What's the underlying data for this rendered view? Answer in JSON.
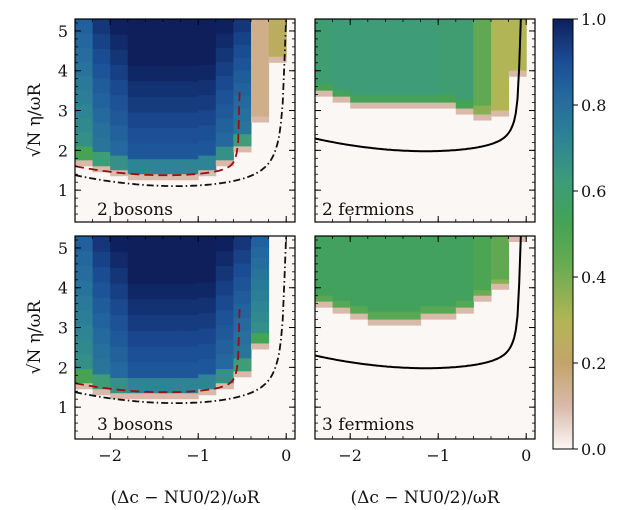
{
  "chart_data": {
    "type": "heatmap",
    "colormap": {
      "name": "gist_earth_r",
      "stops": [
        {
          "v": 0.0,
          "color": "#fbf7f5"
        },
        {
          "v": 0.1,
          "color": "#d9b9aa"
        },
        {
          "v": 0.2,
          "color": "#c4a46a"
        },
        {
          "v": 0.3,
          "color": "#b2b556"
        },
        {
          "v": 0.42,
          "color": "#6bac52"
        },
        {
          "v": 0.52,
          "color": "#45a353"
        },
        {
          "v": 0.62,
          "color": "#3e9c78"
        },
        {
          "v": 0.72,
          "color": "#2e8395"
        },
        {
          "v": 0.82,
          "color": "#25699f"
        },
        {
          "v": 0.9,
          "color": "#1b4e95"
        },
        {
          "v": 1.0,
          "color": "#0e1f5c"
        }
      ]
    },
    "colorbar": {
      "ticks": [
        "0.0",
        "0.2",
        "0.4",
        "0.6",
        "0.8",
        "1.0"
      ],
      "range": [
        0,
        1
      ]
    },
    "x_axis": {
      "label": "(Δc − NU0/2)/ωR",
      "range": [
        -2.4,
        0.1
      ],
      "ticks": [
        "−2",
        "−1",
        "0"
      ]
    },
    "y_axis": {
      "label": "√N η/ωR",
      "range": [
        0.2,
        5.3
      ],
      "ticks": [
        "1",
        "2",
        "3",
        "4",
        "5"
      ]
    },
    "panels": [
      {
        "label": "2 bosons",
        "cells": [
          {
            "x0": -2.4,
            "x1": -2.2,
            "y_top": 1.75,
            "value": 0.6
          },
          {
            "x0": -2.2,
            "x1": -2.0,
            "y_top": 1.6,
            "value": 0.7
          },
          {
            "x0": -2.0,
            "x1": -1.8,
            "y_top": 1.5,
            "value": 0.75
          },
          {
            "x0": -1.8,
            "x1": -1.6,
            "y_top": 1.4,
            "value": 0.8
          },
          {
            "x0": -1.6,
            "x1": -1.4,
            "y_top": 1.4,
            "value": 0.8
          },
          {
            "x0": -1.4,
            "x1": -1.2,
            "y_top": 1.4,
            "value": 0.8
          },
          {
            "x0": -1.2,
            "x1": -1.0,
            "y_top": 1.4,
            "value": 0.8
          },
          {
            "x0": -1.0,
            "x1": -0.8,
            "y_top": 1.5,
            "value": 0.8
          },
          {
            "x0": -0.8,
            "x1": -0.6,
            "y_top": 1.75,
            "value": 0.75
          },
          {
            "x0": -0.6,
            "x1": -0.4,
            "y_top": 2.1,
            "value": 0.7
          },
          {
            "x0": -0.4,
            "x1": -0.2,
            "y_top": 2.85,
            "value": 0.15
          },
          {
            "x0": -0.2,
            "x1": 0.0,
            "y_top": 4.35,
            "value": 0.25
          }
        ],
        "guides": [
          "dashed",
          "dashdot"
        ]
      },
      {
        "label": "2 fermions",
        "cells": [
          {
            "x0": -2.4,
            "x1": -2.2,
            "y_top": 3.5,
            "value": 0.6
          },
          {
            "x0": -2.2,
            "x1": -2.0,
            "y_top": 3.35,
            "value": 0.62
          },
          {
            "x0": -2.0,
            "x1": -1.8,
            "y_top": 3.2,
            "value": 0.62
          },
          {
            "x0": -1.8,
            "x1": -1.6,
            "y_top": 3.2,
            "value": 0.62
          },
          {
            "x0": -1.6,
            "x1": -1.4,
            "y_top": 3.2,
            "value": 0.62
          },
          {
            "x0": -1.4,
            "x1": -1.2,
            "y_top": 3.2,
            "value": 0.62
          },
          {
            "x0": -1.2,
            "x1": -1.0,
            "y_top": 3.2,
            "value": 0.62
          },
          {
            "x0": -1.0,
            "x1": -0.8,
            "y_top": 3.2,
            "value": 0.6
          },
          {
            "x0": -0.8,
            "x1": -0.6,
            "y_top": 3.05,
            "value": 0.6
          },
          {
            "x0": -0.6,
            "x1": -0.4,
            "y_top": 2.9,
            "value": 0.45
          },
          {
            "x0": -0.4,
            "x1": -0.2,
            "y_top": 3.0,
            "value": 0.3
          },
          {
            "x0": -0.2,
            "x1": 0.0,
            "y_top": 4.0,
            "value": 0.3
          }
        ],
        "guides": [
          "solid"
        ]
      },
      {
        "label": "3 bosons",
        "cells": [
          {
            "x0": -2.4,
            "x1": -2.2,
            "y_top": 1.6,
            "value": 0.6
          },
          {
            "x0": -2.2,
            "x1": -2.0,
            "y_top": 1.45,
            "value": 0.7
          },
          {
            "x0": -2.0,
            "x1": -1.8,
            "y_top": 1.35,
            "value": 0.75
          },
          {
            "x0": -1.8,
            "x1": -1.6,
            "y_top": 1.35,
            "value": 0.8
          },
          {
            "x0": -1.6,
            "x1": -1.4,
            "y_top": 1.35,
            "value": 0.8
          },
          {
            "x0": -1.4,
            "x1": -1.2,
            "y_top": 1.35,
            "value": 0.8
          },
          {
            "x0": -1.2,
            "x1": -1.0,
            "y_top": 1.35,
            "value": 0.8
          },
          {
            "x0": -1.0,
            "x1": -0.8,
            "y_top": 1.45,
            "value": 0.8
          },
          {
            "x0": -0.8,
            "x1": -0.6,
            "y_top": 1.6,
            "value": 0.75
          },
          {
            "x0": -0.6,
            "x1": -0.4,
            "y_top": 1.9,
            "value": 0.7
          },
          {
            "x0": -0.4,
            "x1": -0.2,
            "y_top": 2.6,
            "value": 0.6
          },
          {
            "x0": -0.2,
            "x1": 0.0,
            "y_top": 5.3,
            "value": 0.0
          }
        ],
        "guides": [
          "dashed",
          "dashdot"
        ]
      },
      {
        "label": "3 fermions",
        "cells": [
          {
            "x0": -2.4,
            "x1": -2.2,
            "y_top": 3.65,
            "value": 0.55
          },
          {
            "x0": -2.2,
            "x1": -2.0,
            "y_top": 3.5,
            "value": 0.55
          },
          {
            "x0": -2.0,
            "x1": -1.8,
            "y_top": 3.35,
            "value": 0.55
          },
          {
            "x0": -1.8,
            "x1": -1.6,
            "y_top": 3.2,
            "value": 0.55
          },
          {
            "x0": -1.6,
            "x1": -1.4,
            "y_top": 3.2,
            "value": 0.55
          },
          {
            "x0": -1.4,
            "x1": -1.2,
            "y_top": 3.2,
            "value": 0.55
          },
          {
            "x0": -1.2,
            "x1": -1.0,
            "y_top": 3.35,
            "value": 0.55
          },
          {
            "x0": -1.0,
            "x1": -0.8,
            "y_top": 3.35,
            "value": 0.55
          },
          {
            "x0": -0.8,
            "x1": -0.6,
            "y_top": 3.5,
            "value": 0.55
          },
          {
            "x0": -0.6,
            "x1": -0.4,
            "y_top": 3.8,
            "value": 0.5
          },
          {
            "x0": -0.4,
            "x1": -0.2,
            "y_top": 4.1,
            "value": 0.45
          },
          {
            "x0": -0.2,
            "x1": 0.0,
            "y_top": 5.3,
            "value": 0.05
          }
        ],
        "guides": [
          "solid"
        ]
      }
    ]
  }
}
